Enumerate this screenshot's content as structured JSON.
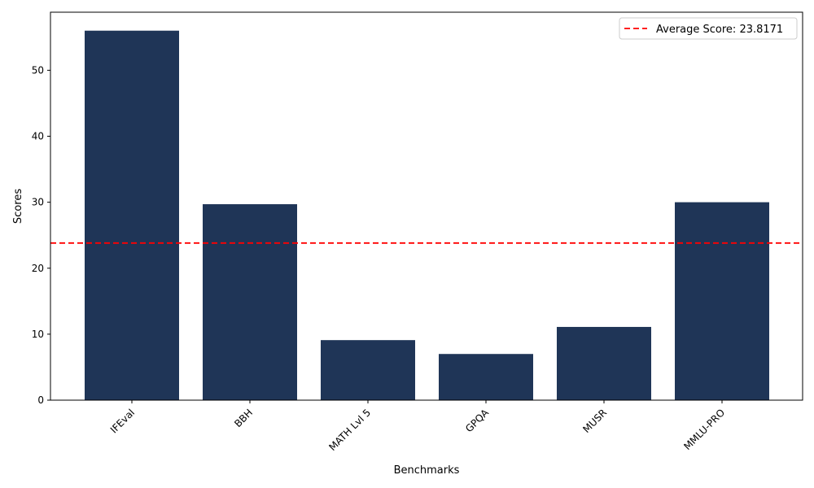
{
  "chart_data": {
    "type": "bar",
    "categories": [
      "IFEval",
      "BBH",
      "MATH Lvl 5",
      "GPQA",
      "MUSR",
      "MMLU-PRO"
    ],
    "values": [
      56.0,
      29.7,
      9.1,
      7.0,
      11.1,
      30.0
    ],
    "xlabel": "Benchmarks",
    "ylabel": "Scores",
    "ylim": [
      0,
      58.8
    ],
    "yticks": [
      0,
      10,
      20,
      30,
      40,
      50
    ],
    "reference_line": {
      "value": 23.8171,
      "label": "Average Score: 23.8171",
      "style": "dashed"
    },
    "legend_position": "top-right",
    "grid": false,
    "colors": {
      "bar": "#1f3557",
      "reference_line": "#ff0000"
    }
  }
}
